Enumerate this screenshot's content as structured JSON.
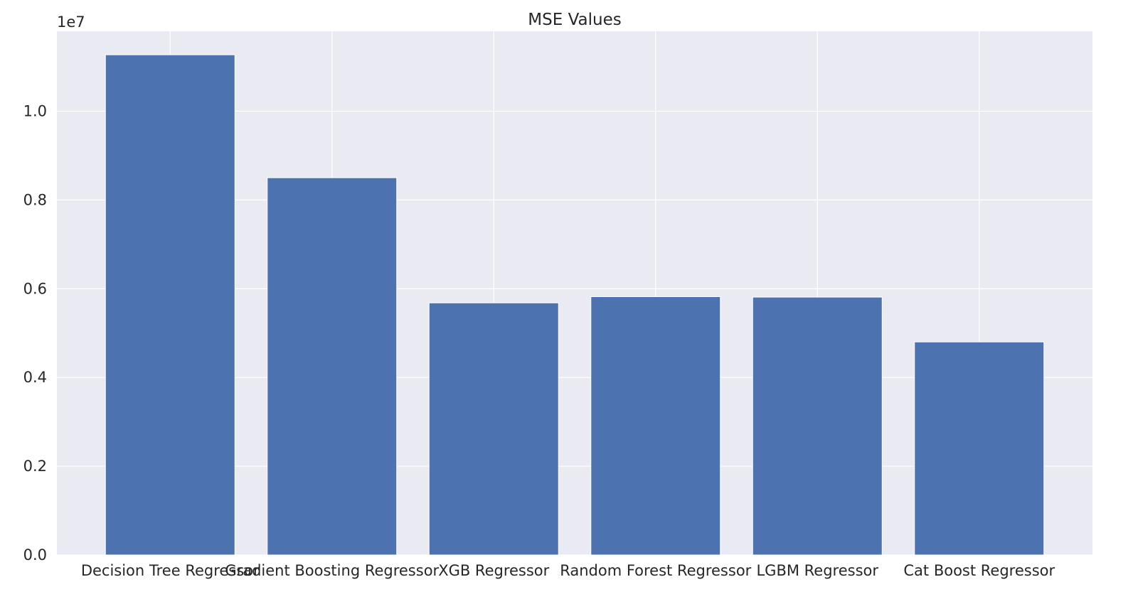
{
  "chart_data": {
    "type": "bar",
    "title": "MSE Values",
    "xlabel": "",
    "ylabel": "",
    "y_offset_label": "1e7",
    "categories": [
      "Decision Tree Regressor",
      "Gradient Boosting Regressor",
      "XGB Regressor",
      "Random Forest Regressor",
      "LGBM Regressor",
      "Cat Boost Regressor"
    ],
    "values": [
      11270000,
      8500000,
      5680000,
      5820000,
      5810000,
      4800000
    ],
    "ylim": [
      0,
      11800000
    ],
    "y_ticks": [
      0,
      2000000,
      4000000,
      6000000,
      8000000,
      10000000
    ],
    "y_tick_labels": [
      "0.0",
      "0.2",
      "0.4",
      "0.6",
      "0.8",
      "1.0"
    ],
    "grid": true,
    "legend": "none",
    "colors": {
      "bar": "#4c72b0",
      "plot_background": "#eaeaf2",
      "grid": "#ffffff",
      "text": "#262626"
    }
  }
}
